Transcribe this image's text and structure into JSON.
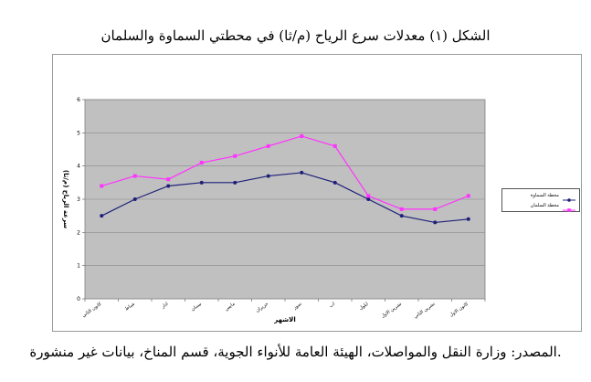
{
  "figure": {
    "title": "الشكل (١) معدلات سرع الرياح (م/ثا) في محطتي السماوة والسلمان",
    "source": "المصدر: وزارة النقل والمواصلات، الهيئة العامة للأنواء الجوية، قسم المناخ، بيانات غير منشورة."
  },
  "chart_data": {
    "type": "line",
    "title": "",
    "xlabel": "الاشهر",
    "ylabel": "سرعة الرياح (م/ثا)",
    "ylim": [
      0,
      6
    ],
    "yticks": [
      0,
      1,
      2,
      3,
      4,
      5,
      6
    ],
    "grid": true,
    "legend_position": "right",
    "categories": [
      "كانون الثاني",
      "شباط",
      "اذار",
      "نيسان",
      "مايس",
      "حزيران",
      "تموز",
      "اب",
      "ايلول",
      "تشرين الاول",
      "تشرين الثاني",
      "كانون الاول"
    ],
    "series": [
      {
        "name": "محطة السماوة",
        "color": "#1f1f7a",
        "values": [
          2.5,
          3.0,
          3.4,
          3.5,
          3.5,
          3.7,
          3.8,
          3.5,
          3.0,
          2.5,
          2.3,
          2.4
        ]
      },
      {
        "name": "محطة السلمان",
        "color": "#ff33ff",
        "values": [
          3.4,
          3.7,
          3.6,
          4.1,
          4.3,
          4.6,
          4.9,
          4.6,
          3.1,
          2.7,
          2.7,
          3.1
        ]
      }
    ],
    "plot_background": "#c0c0c0"
  }
}
